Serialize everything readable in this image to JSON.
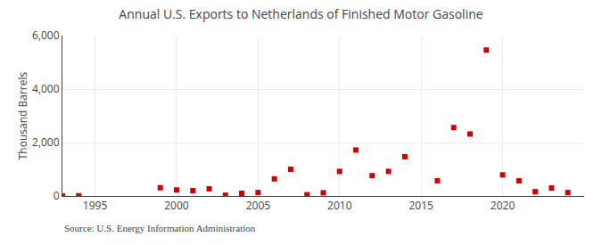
{
  "chart_data": {
    "type": "scatter",
    "title": "Annual U.S. Exports to Netherlands of Finished Motor Gasoline",
    "ylabel": "Thousand Barrels",
    "annotations": [
      "Source: U.S. Energy Information Administration"
    ],
    "x": [
      1993,
      1994,
      1999,
      2000,
      2001,
      2002,
      2003,
      2004,
      2005,
      2006,
      2007,
      2008,
      2009,
      2010,
      2011,
      2012,
      2013,
      2014,
      2016,
      2017,
      2018,
      2019,
      2020,
      2021,
      2022,
      2023,
      2024
    ],
    "values": [
      5,
      10,
      310,
      225,
      200,
      270,
      30,
      100,
      130,
      640,
      1000,
      45,
      120,
      920,
      1720,
      760,
      920,
      1470,
      570,
      2560,
      2320,
      5460,
      790,
      570,
      160,
      300,
      130
    ],
    "color": "#cc0000",
    "marker": "square",
    "xlim": [
      1993,
      2025
    ],
    "ylim": [
      0,
      6000
    ],
    "xticks": [
      1995,
      2000,
      2005,
      2010,
      2015,
      2020
    ],
    "yticks": [
      0,
      {
        "value": 2000,
        "label": "2,000"
      },
      {
        "value": 4000,
        "label": "4,000"
      },
      {
        "value": 6000,
        "label": "6,000"
      }
    ],
    "grid": true
  }
}
